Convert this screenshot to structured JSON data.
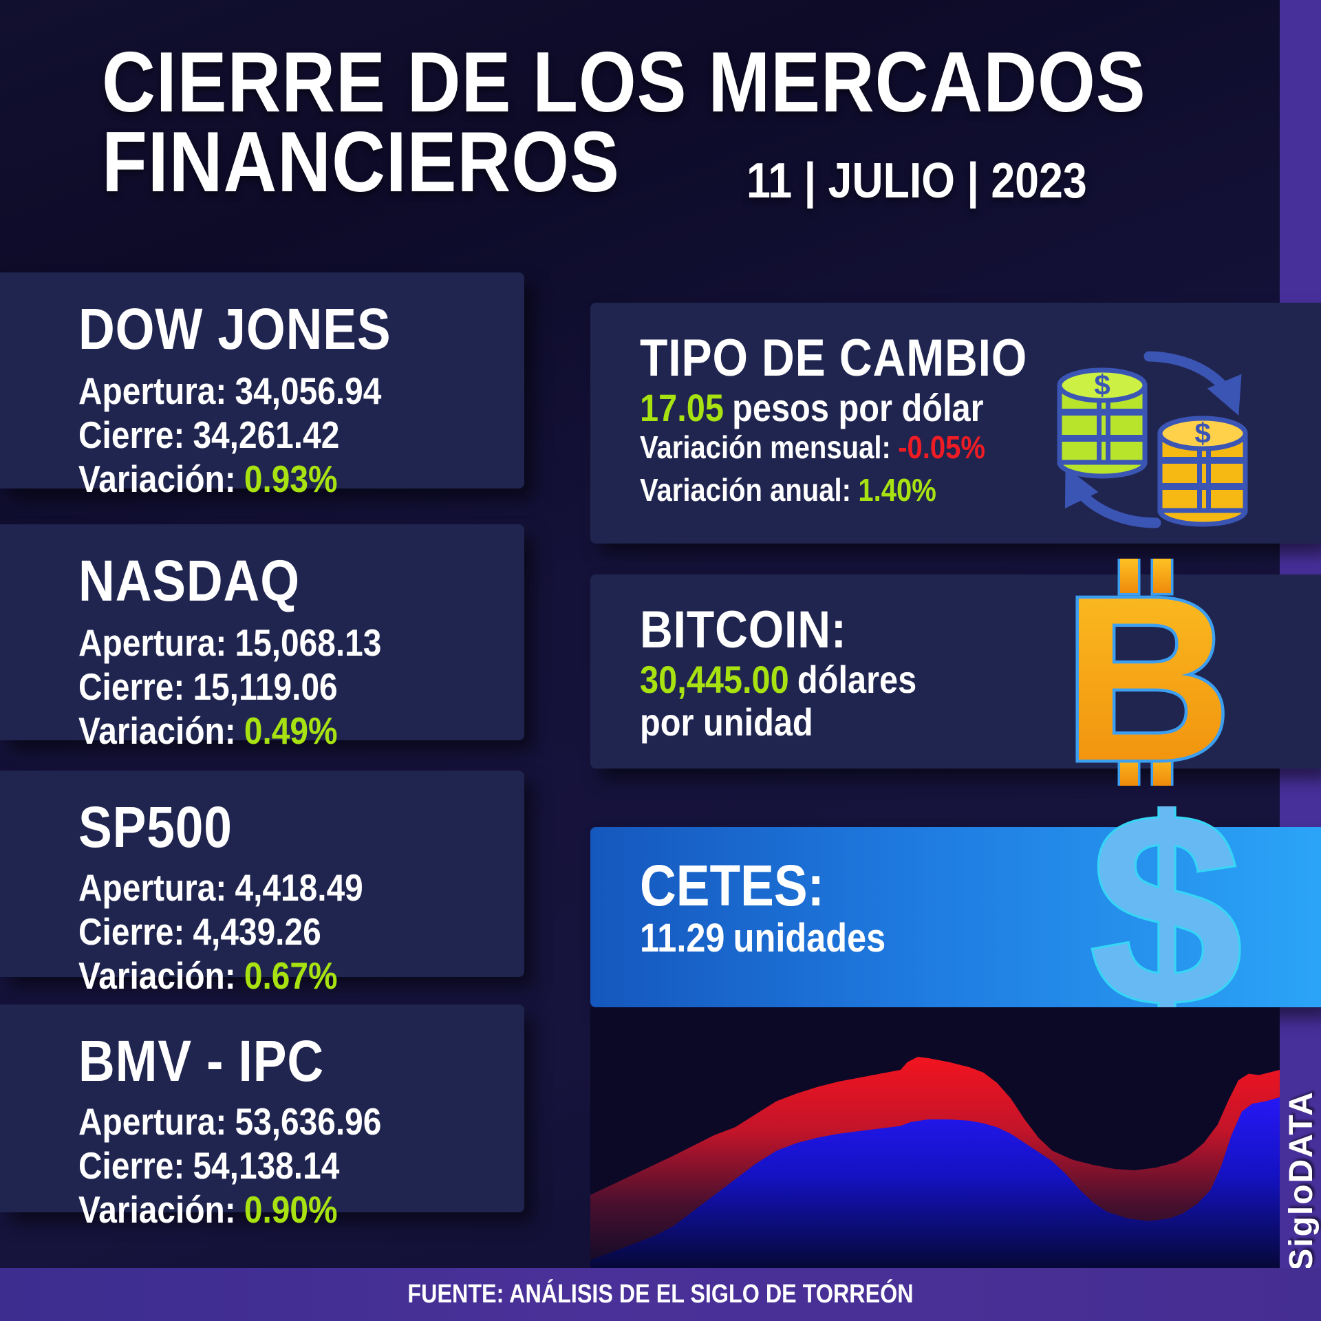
{
  "header": {
    "title_line1": "CIERRE DE LOS MERCADOS",
    "title_line2": "FINANCIEROS",
    "date": "11 | JULIO | 2023"
  },
  "markets": [
    {
      "title": "DOW JONES",
      "apertura_label": "Apertura:",
      "apertura": "34,056.94",
      "cierre_label": "Cierre:",
      "cierre": "34,261.42",
      "variacion_label": "Variación:",
      "variacion": "0.93%",
      "variacion_color": "#a8e311"
    },
    {
      "title": "NASDAQ",
      "apertura_label": "Apertura:",
      "apertura": "15,068.13",
      "cierre_label": "Cierre:",
      "cierre": "15,119.06",
      "variacion_label": "Variación:",
      "variacion": "0.49%",
      "variacion_color": "#a8e311"
    },
    {
      "title": "SP500",
      "apertura_label": "Apertura:",
      "apertura": "4,418.49",
      "cierre_label": "Cierre:",
      "cierre": "4,439.26",
      "variacion_label": "Variación:",
      "variacion": "0.67%",
      "variacion_color": "#a8e311"
    },
    {
      "title": "BMV - IPC",
      "apertura_label": "Apertura:",
      "apertura": "53,636.96",
      "cierre_label": "Cierre:",
      "cierre": "54,138.14",
      "variacion_label": "Variación:",
      "variacion": "0.90%",
      "variacion_color": "#a8e311"
    }
  ],
  "exchange": {
    "title": "TIPO DE CAMBIO",
    "rate": "17.05",
    "rate_suffix": "pesos por dólar",
    "monthly_label": "Variación mensual:",
    "monthly": "-0.05%",
    "monthly_color": "#ee1c24",
    "annual_label": "Variación anual:",
    "annual": "1.40%",
    "annual_color": "#a8e311"
  },
  "bitcoin": {
    "title": "BITCOIN:",
    "price": "30,445.00",
    "price_suffix": "dólares",
    "line2": "por unidad",
    "symbol": "B"
  },
  "cetes": {
    "title": "CETES:",
    "value": "11.29",
    "suffix": "unidades",
    "symbol": "$"
  },
  "footer": {
    "source": "FUENTE: ANÁLISIS DE EL SIGLO DE TORREÓN",
    "brand": "SigloDATA"
  },
  "colors": {
    "background": "#14123a",
    "panel": "#202550",
    "accent_green": "#a8e311",
    "accent_red": "#ee1c24",
    "purple_strip": "#47309a",
    "cetes_gradient": [
      "#1557bd",
      "#2ba4f7"
    ],
    "bitcoin_orange": [
      "#fdb813",
      "#f08206"
    ],
    "icon_blue_outline": "#3d9ff0",
    "coin_green": "#b9e42c",
    "coin_gold": "#f6b913",
    "arrow_blue": "#3b55b5",
    "chart_red": "#ef1b24",
    "chart_blue": "#1f17f0"
  },
  "chart_data": {
    "type": "area",
    "title": "",
    "axes_visible": false,
    "legend": null,
    "note": "Decorative stylized mountain area chart, no axis labels or values shown. Points are silhouette coordinates: x = % of plot width, y = % of plot height measured from top.",
    "x_range": [
      0,
      100
    ],
    "y_range": [
      0,
      100
    ],
    "series": [
      {
        "name": "red-area",
        "color": "#ef1b24",
        "points": [
          [
            0,
            72
          ],
          [
            4,
            67
          ],
          [
            8,
            62
          ],
          [
            12,
            57
          ],
          [
            15,
            53
          ],
          [
            18,
            49
          ],
          [
            21,
            46
          ],
          [
            24,
            41
          ],
          [
            27,
            36
          ],
          [
            30,
            33
          ],
          [
            33,
            30.5
          ],
          [
            36,
            28.5
          ],
          [
            39,
            27
          ],
          [
            42,
            25.5
          ],
          [
            45,
            24
          ],
          [
            46,
            21
          ],
          [
            47.5,
            19
          ],
          [
            49,
            19.5
          ],
          [
            52,
            21
          ],
          [
            55,
            23
          ],
          [
            57,
            25
          ],
          [
            59,
            29
          ],
          [
            61,
            35
          ],
          [
            63,
            43
          ],
          [
            65,
            50
          ],
          [
            67,
            55
          ],
          [
            70,
            58.5
          ],
          [
            73,
            60.5
          ],
          [
            76,
            62
          ],
          [
            79,
            62.5
          ],
          [
            82,
            61.5
          ],
          [
            85,
            59.5
          ],
          [
            87,
            56.5
          ],
          [
            89,
            52
          ],
          [
            91,
            45
          ],
          [
            92.5,
            36
          ],
          [
            94,
            28
          ],
          [
            95.5,
            25.5
          ],
          [
            97,
            26
          ],
          [
            100,
            24
          ]
        ]
      },
      {
        "name": "blue-area",
        "color": "#1f17f0",
        "points": [
          [
            0,
            97
          ],
          [
            3,
            94
          ],
          [
            6,
            91
          ],
          [
            9,
            88
          ],
          [
            12,
            84
          ],
          [
            15,
            78
          ],
          [
            18,
            72
          ],
          [
            21,
            66
          ],
          [
            24,
            60
          ],
          [
            27,
            55
          ],
          [
            30,
            52
          ],
          [
            33,
            50
          ],
          [
            36,
            48.5
          ],
          [
            39,
            47.5
          ],
          [
            42,
            46.5
          ],
          [
            45,
            45.5
          ],
          [
            46.5,
            44
          ],
          [
            49,
            43
          ],
          [
            52,
            43
          ],
          [
            55,
            43.5
          ],
          [
            57,
            44.5
          ],
          [
            59,
            46
          ],
          [
            61,
            48.5
          ],
          [
            63,
            52
          ],
          [
            65,
            55.5
          ],
          [
            67,
            59
          ],
          [
            69,
            64
          ],
          [
            71,
            70
          ],
          [
            73,
            75
          ],
          [
            75,
            78.5
          ],
          [
            78,
            81
          ],
          [
            81,
            82
          ],
          [
            84,
            81
          ],
          [
            86,
            79
          ],
          [
            88,
            75.5
          ],
          [
            90,
            70
          ],
          [
            91.5,
            61
          ],
          [
            93,
            49
          ],
          [
            94.5,
            40
          ],
          [
            96,
            37
          ],
          [
            98,
            36
          ],
          [
            100,
            34.5
          ]
        ]
      }
    ]
  }
}
